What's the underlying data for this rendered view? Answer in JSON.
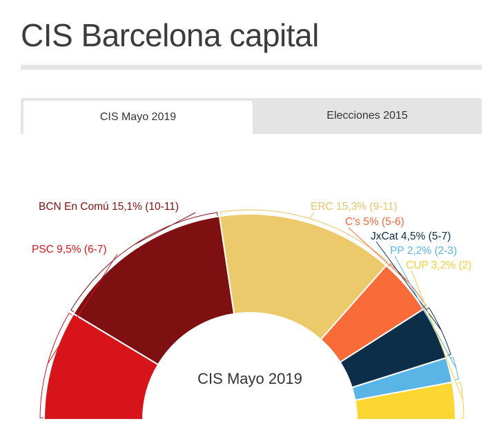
{
  "header": {
    "title": "CIS Barcelona capital"
  },
  "tabs": [
    {
      "label": "CIS Mayo 2019",
      "active": true
    },
    {
      "label": "Elecciones 2015",
      "active": false
    }
  ],
  "chart_data": {
    "type": "pie",
    "subtype": "semicircle-parliament",
    "center_label": "CIS Mayo 2019",
    "series": [
      {
        "party": "PSC",
        "label": "PSC 9,5% (6-7)",
        "percent": 9.5,
        "seats": "6-7",
        "arc_degrees": 31,
        "color": "#d7141a",
        "label_color": "#d7141a"
      },
      {
        "party": "BCN En Comú",
        "label": "BCN En Comú 15,1% (10-11)",
        "percent": 15.1,
        "seats": "10-11",
        "arc_degrees": 50.5,
        "color": "#7e1012",
        "label_color": "#7e1012"
      },
      {
        "party": "ERC",
        "label": "ERC 15,3% (9-11)",
        "percent": 15.3,
        "seats": "9-11",
        "arc_degrees": 50,
        "color": "#ecca6b",
        "label_color": "#e6c56c"
      },
      {
        "party": "C's",
        "label": "C's 5% (5-6)",
        "percent": 5,
        "seats": "5-6",
        "arc_degrees": 16,
        "color": "#f96b38",
        "label_color": "#f5663a"
      },
      {
        "party": "JxCat",
        "label": "JxCat 4,5% (5-7)",
        "percent": 4.5,
        "seats": "5-7",
        "arc_degrees": 15,
        "color": "#0c2e48",
        "label_color": "#0c2e48"
      },
      {
        "party": "PP",
        "label": "PP 2,2% (2-3)",
        "percent": 2.2,
        "seats": "2-3",
        "arc_degrees": 7,
        "color": "#5ab4e5",
        "label_color": "#5ab4e5"
      },
      {
        "party": "CUP",
        "label": "CUP 3,2% (2)",
        "percent": 3.2,
        "seats": "2",
        "arc_degrees": 10.5,
        "color": "#fcd734",
        "label_color": "#f2cf3a"
      }
    ]
  }
}
